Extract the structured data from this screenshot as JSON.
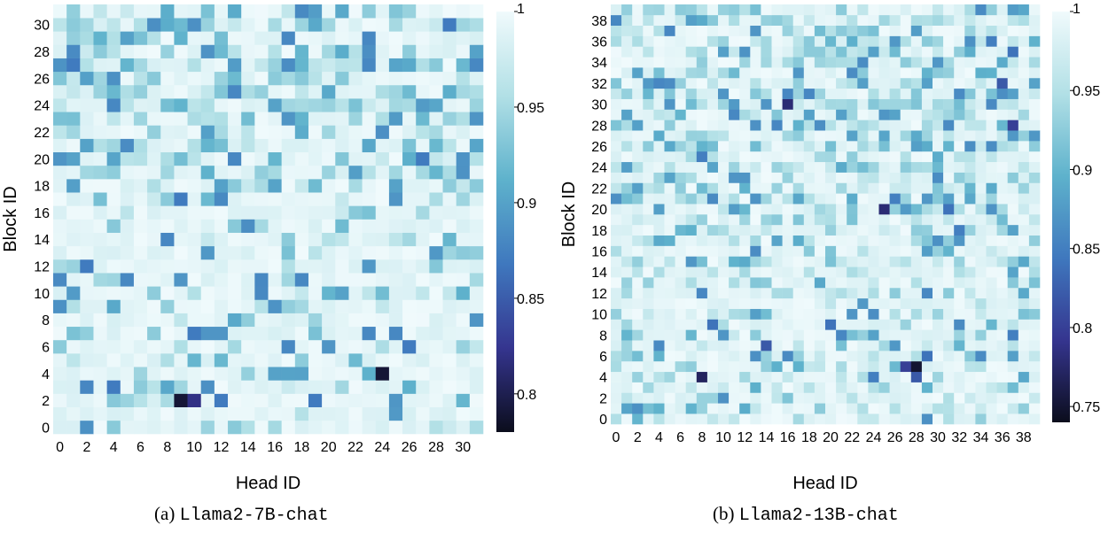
{
  "captions": [
    {
      "prefix": "(a) ",
      "model": "Llama2-7B-chat"
    },
    {
      "prefix": "(b) ",
      "model": "Llama2-13B-chat"
    }
  ],
  "colormap": {
    "low": "#0b0d1c",
    "stops": [
      "#0b0d1c",
      "#35358f",
      "#3f78be",
      "#5eb2cc",
      "#b2e0e6",
      "#f0fafc"
    ]
  },
  "chart_data": [
    {
      "type": "heatmap",
      "xlabel": "Head ID",
      "ylabel": "Block ID",
      "x_ticks": [
        0,
        2,
        4,
        6,
        8,
        10,
        12,
        14,
        16,
        18,
        20,
        22,
        24,
        26,
        28,
        30
      ],
      "y_ticks": [
        0,
        2,
        4,
        6,
        8,
        10,
        12,
        14,
        16,
        18,
        20,
        22,
        24,
        26,
        28,
        30
      ],
      "n_heads": 32,
      "n_blocks": 32,
      "vmin": 0.78,
      "vmax": 1.0,
      "colorbar_ticks": [
        "0.8",
        "0.85",
        "0.9",
        "0.95",
        "1"
      ],
      "colorbar_tick_values": [
        0.8,
        0.85,
        0.9,
        0.95,
        1.0
      ],
      "baseline_value": 0.99,
      "notable_cells": [
        {
          "head": 9,
          "block": 2,
          "value": 0.79
        },
        {
          "head": 10,
          "block": 2,
          "value": 0.82
        },
        {
          "head": 24,
          "block": 4,
          "value": 0.79
        },
        {
          "head": 12,
          "block": 2,
          "value": 0.87
        },
        {
          "head": 19,
          "block": 2,
          "value": 0.87
        },
        {
          "head": 4,
          "block": 3,
          "value": 0.87
        },
        {
          "head": 10,
          "block": 7,
          "value": 0.87
        },
        {
          "head": 11,
          "block": 7,
          "value": 0.89
        },
        {
          "head": 12,
          "block": 7,
          "value": 0.89
        },
        {
          "head": 23,
          "block": 7,
          "value": 0.88
        },
        {
          "head": 25,
          "block": 7,
          "value": 0.88
        },
        {
          "head": 26,
          "block": 6,
          "value": 0.87
        },
        {
          "head": 17,
          "block": 6,
          "value": 0.88
        },
        {
          "head": 2,
          "block": 12,
          "value": 0.87
        },
        {
          "head": 5,
          "block": 11,
          "value": 0.88
        },
        {
          "head": 15,
          "block": 11,
          "value": 0.88
        },
        {
          "head": 18,
          "block": 11,
          "value": 0.88
        },
        {
          "head": 9,
          "block": 17,
          "value": 0.87
        },
        {
          "head": 25,
          "block": 17,
          "value": 0.89
        },
        {
          "head": 0,
          "block": 20,
          "value": 0.89
        },
        {
          "head": 1,
          "block": 20,
          "value": 0.9
        },
        {
          "head": 1,
          "block": 27,
          "value": 0.87
        },
        {
          "head": 4,
          "block": 24,
          "value": 0.88
        },
        {
          "head": 17,
          "block": 23,
          "value": 0.89
        },
        {
          "head": 17,
          "block": 29,
          "value": 0.88
        },
        {
          "head": 16,
          "block": 24,
          "value": 0.9
        },
        {
          "head": 23,
          "block": 27,
          "value": 0.88
        },
        {
          "head": 23,
          "block": 29,
          "value": 0.88
        },
        {
          "head": 27,
          "block": 20,
          "value": 0.87
        },
        {
          "head": 29,
          "block": 30,
          "value": 0.87
        },
        {
          "head": 31,
          "block": 27,
          "value": 0.88
        },
        {
          "head": 31,
          "block": 23,
          "value": 0.89
        },
        {
          "head": 21,
          "block": 10,
          "value": 0.9
        },
        {
          "head": 20,
          "block": 6,
          "value": 0.89
        },
        {
          "head": 31,
          "block": 8,
          "value": 0.89
        },
        {
          "head": 16,
          "block": 4,
          "value": 0.9
        },
        {
          "head": 18,
          "block": 4,
          "value": 0.9
        }
      ]
    },
    {
      "type": "heatmap",
      "xlabel": "Head ID",
      "ylabel": "Block ID",
      "x_ticks": [
        0,
        2,
        4,
        6,
        8,
        10,
        12,
        14,
        16,
        18,
        20,
        22,
        24,
        26,
        28,
        30,
        32,
        34,
        36,
        38
      ],
      "y_ticks": [
        0,
        2,
        4,
        6,
        8,
        10,
        12,
        14,
        16,
        18,
        20,
        22,
        24,
        26,
        28,
        30,
        32,
        34,
        36,
        38
      ],
      "n_heads": 40,
      "n_blocks": 40,
      "vmin": 0.74,
      "vmax": 1.0,
      "colorbar_ticks": [
        "0.75",
        "0.8",
        "0.85",
        "0.9",
        "0.95",
        "1"
      ],
      "colorbar_tick_values": [
        0.75,
        0.8,
        0.85,
        0.9,
        0.95,
        1.0
      ],
      "baseline_value": 0.985,
      "notable_cells": [
        {
          "head": 28,
          "block": 5,
          "value": 0.75
        },
        {
          "head": 8,
          "block": 4,
          "value": 0.77
        },
        {
          "head": 16,
          "block": 30,
          "value": 0.78
        },
        {
          "head": 25,
          "block": 20,
          "value": 0.78
        },
        {
          "head": 27,
          "block": 5,
          "value": 0.8
        },
        {
          "head": 28,
          "block": 4,
          "value": 0.82
        },
        {
          "head": 37,
          "block": 28,
          "value": 0.8
        },
        {
          "head": 36,
          "block": 32,
          "value": 0.82
        },
        {
          "head": 14,
          "block": 7,
          "value": 0.82
        },
        {
          "head": 29,
          "block": 6,
          "value": 0.84
        },
        {
          "head": 9,
          "block": 9,
          "value": 0.84
        },
        {
          "head": 20,
          "block": 9,
          "value": 0.84
        },
        {
          "head": 8,
          "block": 25,
          "value": 0.85
        },
        {
          "head": 37,
          "block": 35,
          "value": 0.84
        },
        {
          "head": 35,
          "block": 36,
          "value": 0.85
        },
        {
          "head": 31,
          "block": 20,
          "value": 0.84
        },
        {
          "head": 32,
          "block": 18,
          "value": 0.85
        },
        {
          "head": 26,
          "block": 21,
          "value": 0.85
        },
        {
          "head": 24,
          "block": 4,
          "value": 0.85
        },
        {
          "head": 37,
          "block": 8,
          "value": 0.85
        },
        {
          "head": 35,
          "block": 30,
          "value": 0.86
        },
        {
          "head": 31,
          "block": 28,
          "value": 0.86
        },
        {
          "head": 16,
          "block": 6,
          "value": 0.86
        },
        {
          "head": 5,
          "block": 30,
          "value": 0.87
        },
        {
          "head": 9,
          "block": 21,
          "value": 0.86
        },
        {
          "head": 10,
          "block": 31,
          "value": 0.87
        },
        {
          "head": 14,
          "block": 30,
          "value": 0.87
        },
        {
          "head": 22,
          "block": 10,
          "value": 0.87
        },
        {
          "head": 11,
          "block": 23,
          "value": 0.87
        },
        {
          "head": 2,
          "block": 28,
          "value": 0.88
        }
      ]
    }
  ]
}
